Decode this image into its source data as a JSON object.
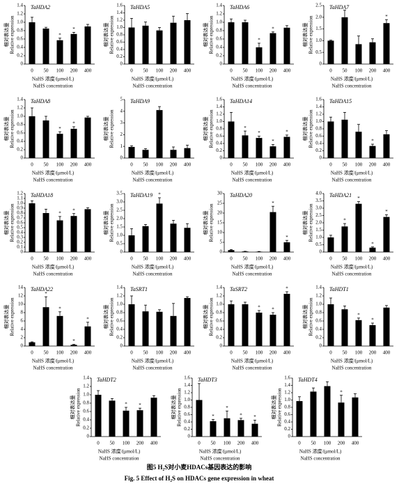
{
  "chart_data": [
    {
      "type": "bar",
      "title": "TaHDA2",
      "categories": [
        "0",
        "50",
        "100",
        "200",
        "400"
      ],
      "values": [
        1.0,
        0.85,
        0.57,
        0.72,
        0.9
      ],
      "errors": [
        0.12,
        0.03,
        0.05,
        0.04,
        0.05
      ],
      "significance": [
        null,
        null,
        "*",
        "*",
        null
      ],
      "color": "#000000",
      "ylim": [
        0,
        1.4
      ],
      "yticks": [
        0,
        0.2,
        0.4,
        0.6,
        0.8,
        {
          "value": 1,
          "label": "1.0"
        },
        1.2,
        1.4
      ],
      "ylabel_zh": "相对表达量",
      "ylabel_en": "Relative expression",
      "xlabel_zh": "NaHS 浓度/(μmol/L)",
      "xlabel_en": "NaHS concentration"
    },
    {
      "type": "bar",
      "title": "TaHDA5",
      "categories": [
        "0",
        "50",
        "100",
        "200",
        "400"
      ],
      "values": [
        1.0,
        1.05,
        0.92,
        1.13,
        1.2
      ],
      "errors": [
        0.25,
        0.1,
        0.08,
        0.18,
        0.18
      ],
      "significance": [
        null,
        null,
        null,
        null,
        null
      ],
      "color": "#000000",
      "ylim": [
        0,
        1.6
      ],
      "yticks": [
        0,
        0.2,
        0.4,
        0.6,
        0.8,
        {
          "value": 1,
          "label": "1.0"
        },
        1.2,
        1.4,
        1.6
      ],
      "ylabel_zh": "相对表达量",
      "ylabel_en": "Relative expression",
      "xlabel_zh": "NaHS 浓度/(μmol/L)",
      "xlabel_en": "NaHS concentration"
    },
    {
      "type": "bar",
      "title": "TaHDA6",
      "categories": [
        "0",
        "50",
        "100",
        "200",
        "400"
      ],
      "values": [
        1.0,
        1.0,
        0.4,
        0.74,
        0.87
      ],
      "errors": [
        0.08,
        0.05,
        0.1,
        0.03,
        0.05
      ],
      "significance": [
        null,
        null,
        "*",
        "*",
        null
      ],
      "color": "#000000",
      "ylim": [
        0,
        1.4
      ],
      "yticks": [
        0,
        0.2,
        0.4,
        0.6,
        0.8,
        {
          "value": 1,
          "label": "1.0"
        },
        1.2,
        1.4
      ],
      "ylabel_zh": "相对表达量",
      "ylabel_en": "Relative expression",
      "xlabel_zh": "NaHS 浓度/(μmol/L)",
      "xlabel_en": "NaHS concentration"
    },
    {
      "type": "bar",
      "title": "TaHDA7",
      "categories": [
        "0",
        "50",
        "100",
        "200",
        "400"
      ],
      "values": [
        1.0,
        2.0,
        0.85,
        0.93,
        1.75
      ],
      "errors": [
        0.02,
        0.3,
        0.35,
        0.15,
        0.15
      ],
      "significance": [
        null,
        null,
        null,
        null,
        "*"
      ],
      "color": "#000000",
      "ylim": [
        0,
        2.5
      ],
      "yticks": [
        0,
        0.5,
        {
          "value": 1,
          "label": "1.0"
        },
        1.5,
        {
          "value": 2,
          "label": "2.0"
        },
        2.5
      ],
      "ylabel_zh": "相对表达量",
      "ylabel_en": "Relative expression",
      "xlabel_zh": "NaHS 浓度/(μmol/L)",
      "xlabel_en": "NaHS concentration"
    },
    {
      "type": "bar",
      "title": "TaHDA8",
      "categories": [
        "0",
        "50",
        "100",
        "200",
        "400"
      ],
      "values": [
        1.0,
        0.9,
        0.58,
        0.7,
        0.97
      ],
      "errors": [
        0.2,
        0.1,
        0.05,
        0.05,
        0.03
      ],
      "significance": [
        null,
        null,
        "*",
        "*",
        null
      ],
      "color": "#000000",
      "ylim": [
        0,
        1.4
      ],
      "yticks": [
        0,
        0.2,
        0.4,
        0.6,
        0.8,
        {
          "value": 1,
          "label": "1.0"
        },
        1.2,
        1.4
      ],
      "ylabel_zh": "相对表达量",
      "ylabel_en": "Relative expression",
      "xlabel_zh": "NaHS 浓度/(μmol/L)",
      "xlabel_en": "NaHS concentration"
    },
    {
      "type": "bar",
      "title": "TaHDA9",
      "categories": [
        "0",
        "50",
        "100",
        "200",
        "400"
      ],
      "values": [
        0.95,
        0.7,
        4.1,
        0.7,
        0.85
      ],
      "errors": [
        0.1,
        0.1,
        0.3,
        0.25,
        0.25
      ],
      "significance": [
        null,
        null,
        null,
        null,
        null
      ],
      "color": "#000000",
      "ylim": [
        0,
        5
      ],
      "yticks": [
        0,
        1,
        2,
        3,
        4,
        5
      ],
      "ylabel_zh": "相对表达量",
      "ylabel_en": "Relative expression",
      "xlabel_zh": "NaHS 浓度/(μmol/L)",
      "xlabel_en": "NaHS concentration"
    },
    {
      "type": "bar",
      "title": "TaHDA14",
      "categories": [
        "0",
        "50",
        "100",
        "200",
        "400"
      ],
      "values": [
        1.0,
        0.62,
        0.55,
        0.32,
        0.58
      ],
      "errors": [
        0.25,
        0.12,
        0.05,
        0.05,
        0.05
      ],
      "significance": [
        null,
        "*",
        "*",
        "*",
        "*"
      ],
      "color": "#000000",
      "ylim": [
        0,
        1.6
      ],
      "yticks": [
        0,
        0.2,
        0.4,
        0.6,
        0.8,
        {
          "value": 1,
          "label": "1.0"
        },
        1.2,
        1.4,
        1.6
      ],
      "ylabel_zh": "相对表达量",
      "ylabel_en": "Relative expression",
      "xlabel_zh": "NaHS 浓度/(μmol/L)",
      "xlabel_en": "NaHS concentration"
    },
    {
      "type": "bar",
      "title": "TaHDA15",
      "categories": [
        "0",
        "50",
        "100",
        "200",
        "400"
      ],
      "values": [
        1.0,
        1.05,
        0.72,
        0.33,
        0.65
      ],
      "errors": [
        0.12,
        0.2,
        0.2,
        0.05,
        0.1
      ],
      "significance": [
        null,
        null,
        null,
        "*",
        null
      ],
      "color": "#000000",
      "ylim": [
        0,
        1.6
      ],
      "yticks": [
        0,
        0.2,
        0.4,
        0.6,
        0.8,
        {
          "value": 1,
          "label": "1.0"
        },
        1.2,
        1.4,
        1.6
      ],
      "ylabel_zh": "相对表达量",
      "ylabel_en": "Relative expression",
      "xlabel_zh": "NaHS 浓度/(μmol/L)",
      "xlabel_en": "NaHS concentration"
    },
    {
      "type": "bar",
      "title": "TaHDA18",
      "categories": [
        "0",
        "50",
        "100",
        "200",
        "400"
      ],
      "values": [
        1.0,
        0.8,
        0.65,
        0.74,
        0.88
      ],
      "errors": [
        0.05,
        0.08,
        0.08,
        0.05,
        0.03
      ],
      "significance": [
        null,
        null,
        "*",
        "*",
        null
      ],
      "color": "#000000",
      "ylim": [
        0,
        1.2
      ],
      "yticks": [
        0,
        0.1,
        0.2,
        0.3,
        0.4,
        0.5,
        0.6,
        0.7,
        0.8,
        0.9,
        {
          "value": 1,
          "label": "1.0"
        },
        1.1,
        1.2
      ],
      "ylabel_zh": "相对表达量",
      "ylabel_en": "Relative expression",
      "xlabel_zh": "NaHS 浓度/(μmol/L)",
      "xlabel_en": "NaHS concentration"
    },
    {
      "type": "bar",
      "title": "TaHDA19",
      "categories": [
        "0",
        "50",
        "100",
        "200",
        "400"
      ],
      "values": [
        1.0,
        1.55,
        2.9,
        1.7,
        1.45
      ],
      "errors": [
        0.4,
        0.1,
        0.35,
        0.2,
        0.25
      ],
      "significance": [
        null,
        null,
        "*",
        null,
        null
      ],
      "color": "#000000",
      "ylim": [
        0,
        3.5
      ],
      "yticks": [
        0,
        0.5,
        {
          "value": 1,
          "label": "1.0"
        },
        1.5,
        {
          "value": 2,
          "label": "2.0"
        },
        2.5,
        {
          "value": 3,
          "label": "3.0"
        },
        3.5
      ],
      "ylabel_zh": "相对表达量",
      "ylabel_en": "Relative expression",
      "xlabel_zh": "NaHS 浓度/(μmol/L)",
      "xlabel_en": "NaHS concentration"
    },
    {
      "type": "bar",
      "title": "TaHDA20",
      "categories": [
        "0",
        "50",
        "100",
        "200",
        "400"
      ],
      "values": [
        1.0,
        0.3,
        0.2,
        20.5,
        5.0
      ],
      "errors": [
        0.3,
        0.1,
        0.1,
        3,
        1
      ],
      "significance": [
        null,
        null,
        null,
        "*",
        "*"
      ],
      "color": "#000000",
      "ylim": [
        0,
        30
      ],
      "yticks": [
        0,
        5,
        10,
        15,
        20,
        25,
        30
      ],
      "ylabel_zh": "相对表达量",
      "ylabel_en": "Relative expression",
      "xlabel_zh": "NaHS 浓度/(μmol/L)",
      "xlabel_en": "NaHS concentration"
    },
    {
      "type": "bar",
      "title": "TaHDA21",
      "categories": [
        "0",
        "50",
        "100",
        "200",
        "400"
      ],
      "values": [
        1.0,
        1.75,
        3.3,
        0.3,
        2.4
      ],
      "errors": [
        0.15,
        0.2,
        0.15,
        0.05,
        0.15
      ],
      "significance": [
        null,
        "*",
        "*",
        "*",
        "*"
      ],
      "color": "#000000",
      "ylim": [
        0,
        4
      ],
      "yticks": [
        0,
        0.5,
        {
          "value": 1,
          "label": "1.0"
        },
        1.5,
        {
          "value": 2,
          "label": "2.0"
        },
        2.5,
        {
          "value": 3,
          "label": "3.0"
        },
        3.5,
        {
          "value": 4,
          "label": "4.0"
        }
      ],
      "ylabel_zh": "相对表达量",
      "ylabel_en": "Relative expression",
      "xlabel_zh": "NaHS 浓度/(μmol/L)",
      "xlabel_en": "NaHS concentration"
    },
    {
      "type": "bar",
      "title": "TaHDA22",
      "categories": [
        "0",
        "50",
        "100",
        "200",
        "400"
      ],
      "values": [
        0.9,
        9.3,
        7.2,
        0.3,
        4.7
      ],
      "errors": [
        0.1,
        2.5,
        1,
        0.1,
        1
      ],
      "significance": [
        null,
        "*",
        "*",
        "*",
        "*"
      ],
      "color": "#000000",
      "ylim": [
        0,
        14
      ],
      "yticks": [
        0,
        2,
        4,
        6,
        8,
        10,
        12,
        14
      ],
      "ylabel_zh": "相对表达量",
      "ylabel_en": "Relative expression",
      "xlabel_zh": "NaHS 浓度/(μmol/L)",
      "xlabel_en": "NaHS concentration"
    },
    {
      "type": "bar",
      "title": "TaSRT1",
      "categories": [
        "0",
        "50",
        "100",
        "200",
        "400"
      ],
      "values": [
        1.0,
        0.83,
        0.82,
        0.72,
        1.15
      ],
      "errors": [
        0.2,
        0.15,
        0.05,
        0.3,
        0.03
      ],
      "significance": [
        null,
        null,
        null,
        null,
        null
      ],
      "color": "#000000",
      "ylim": [
        0,
        1.4
      ],
      "yticks": [
        0,
        0.2,
        0.4,
        0.6,
        0.8,
        {
          "value": 1,
          "label": "1.0"
        },
        1.2,
        1.4
      ],
      "ylabel_zh": "相对表达量",
      "ylabel_en": "Relative expression",
      "xlabel_zh": "NaHS 浓度/(μmol/L)",
      "xlabel_en": "NaHS concentration"
    },
    {
      "type": "bar",
      "title": "TaSRT2",
      "categories": [
        "0",
        "50",
        "100",
        "200",
        "400"
      ],
      "values": [
        1.0,
        1.0,
        0.8,
        0.75,
        1.25
      ],
      "errors": [
        0.08,
        0.05,
        0.05,
        0.05,
        0.05
      ],
      "significance": [
        null,
        null,
        "*",
        "*",
        "*"
      ],
      "color": "#000000",
      "ylim": [
        0,
        1.4
      ],
      "yticks": [
        0,
        0.2,
        0.4,
        0.6,
        0.8,
        {
          "value": 1,
          "label": "1.0"
        },
        1.2,
        1.4
      ],
      "ylabel_zh": "相对表达量",
      "ylabel_en": "Relative expression",
      "xlabel_zh": "NaHS 浓度/(μmol/L)",
      "xlabel_en": "NaHS concentration"
    },
    {
      "type": "bar",
      "title": "TaHDT1",
      "categories": [
        "0",
        "50",
        "100",
        "200",
        "400"
      ],
      "values": [
        1.0,
        0.88,
        0.62,
        0.5,
        0.92
      ],
      "errors": [
        0.15,
        0.08,
        0.05,
        0.05,
        0.05
      ],
      "significance": [
        null,
        null,
        "*",
        "*",
        null
      ],
      "color": "#000000",
      "ylim": [
        0,
        1.4
      ],
      "yticks": [
        0,
        0.2,
        0.4,
        0.6,
        0.8,
        {
          "value": 1,
          "label": "1.0"
        },
        1.2,
        1.4
      ],
      "ylabel_zh": "相对表达量",
      "ylabel_en": "Relative expression",
      "xlabel_zh": "NaHS 浓度/(μmol/L)",
      "xlabel_en": "NaHS concentration"
    },
    {
      "type": "bar",
      "title": "TaHDT2",
      "categories": [
        "0",
        "50",
        "100",
        "200",
        "400"
      ],
      "values": [
        1.0,
        0.86,
        0.62,
        0.63,
        0.93
      ],
      "errors": [
        0.1,
        0.05,
        0.08,
        0.05,
        0.05
      ],
      "significance": [
        null,
        null,
        "*",
        "*",
        null
      ],
      "color": "#000000",
      "ylim": [
        0,
        1.4
      ],
      "yticks": [
        0,
        0.2,
        0.4,
        0.6,
        0.8,
        {
          "value": 1,
          "label": "1.0"
        },
        1.2,
        1.4
      ],
      "ylabel_zh": "相对表达量",
      "ylabel_en": "Relative expression",
      "xlabel_zh": "NaHS 浓度/(μmol/L)",
      "xlabel_en": "NaHS concentration"
    },
    {
      "type": "bar",
      "title": "TaHDT3",
      "categories": [
        "0",
        "50",
        "100",
        "200",
        "400"
      ],
      "values": [
        1.0,
        0.42,
        0.5,
        0.45,
        0.35
      ],
      "errors": [
        0.45,
        0.05,
        0.2,
        0.05,
        0.1
      ],
      "significance": [
        null,
        "*",
        "*",
        "*",
        "*"
      ],
      "color": "#000000",
      "ylim": [
        0,
        1.6
      ],
      "yticks": [
        0,
        0.2,
        0.4,
        0.6,
        0.8,
        {
          "value": 1,
          "label": "1.0"
        },
        1.2,
        1.4,
        1.6
      ],
      "ylabel_zh": "相对表达量",
      "ylabel_en": "Relative expression",
      "xlabel_zh": "NaHS 浓度/(μmol/L)",
      "xlabel_en": "NaHS concentration"
    },
    {
      "type": "bar",
      "title": "TaHDT4",
      "categories": [
        "0",
        "50",
        "100",
        "200",
        "400"
      ],
      "values": [
        0.97,
        1.23,
        1.38,
        0.93,
        1.07
      ],
      "errors": [
        0.12,
        0.1,
        0.12,
        0.2,
        0.1
      ],
      "significance": [
        null,
        null,
        null,
        "*",
        null
      ],
      "color": "#000000",
      "ylim": [
        0,
        1.6
      ],
      "yticks": [
        0,
        0.2,
        0.4,
        0.6,
        0.8,
        {
          "value": 1,
          "label": "1.0"
        },
        1.2,
        1.4,
        1.6
      ],
      "ylabel_zh": "相对表达量",
      "ylabel_en": "Relative expression",
      "xlabel_zh": "NaHS 浓度/(μmol/L)",
      "xlabel_en": "NaHS concentration"
    }
  ],
  "caption": {
    "zh": "图5  H₂S对小麦HDACs基因表达的影响",
    "en": "Fig. 5   Effect of H₂S on HDACs gene expression in wheat"
  }
}
